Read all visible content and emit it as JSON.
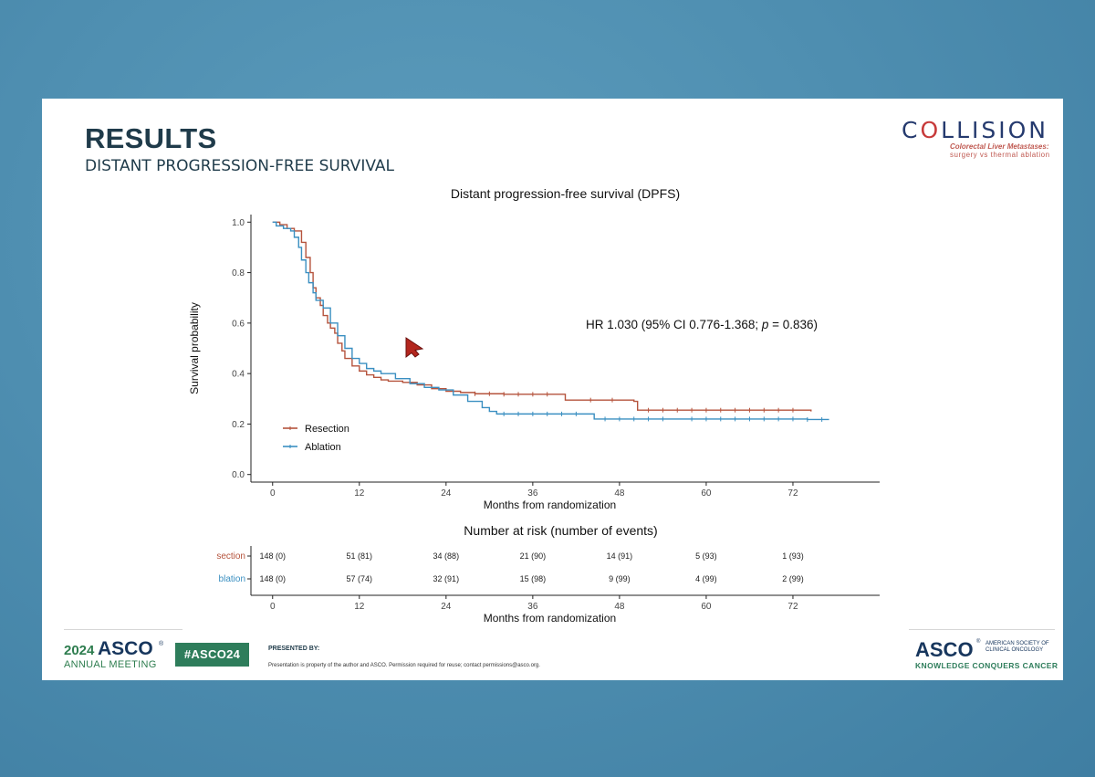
{
  "slide": {
    "title": "RESULTS",
    "subtitle": "DISTANT PROGRESSION-FREE SURVIVAL"
  },
  "logo": {
    "wordmark_pre": "C",
    "wordmark_hl": "O",
    "wordmark_post": "LLISION",
    "tagline_line1": "Colorectal Liver Metastases:",
    "tagline_line2": "surgery vs thermal ablation",
    "accent_color": "#c73a3a",
    "brand_color": "#253a6e"
  },
  "annotation": {
    "hr_prefix": "HR 1.030 (95% CI 0.776-1.368; ",
    "hr_p_symbol": "p",
    "hr_suffix": " = 0.836)"
  },
  "footer": {
    "meeting_year": "2024",
    "meeting_org": "ASCO",
    "meeting_reg": "®",
    "meeting_name": "ANNUAL MEETING",
    "hashtag": "#ASCO24",
    "presented_by": "PRESENTED BY:",
    "disclaimer": "Presentation is property of the author and ASCO. Permission required for reuse; contact permissions@asco.org.",
    "org_word": "ASCO",
    "org_reg": "®",
    "org_society": "AMERICAN SOCIETY OF CLINICAL ONCOLOGY",
    "org_tagline": "KNOWLEDGE CONQUERS CANCER",
    "green_color": "#2e7d5b"
  },
  "chart_data": [
    {
      "type": "line",
      "step": true,
      "title": "Distant progression-free survival (DPFS)",
      "xlabel": "Months from randomization",
      "ylabel": "Survival probability",
      "xlim": [
        -3,
        84
      ],
      "ylim": [
        -0.03,
        1.03
      ],
      "xticks": [
        0,
        12,
        24,
        36,
        48,
        60,
        72
      ],
      "yticks": [
        "0.0",
        "0.2",
        "0.4",
        "0.6",
        "0.8",
        "1.0"
      ],
      "grid": false,
      "legend_position": "bottom-left",
      "series": [
        {
          "name": "Resection",
          "color": "#b5533c",
          "points": [
            [
              0,
              1.0
            ],
            [
              1,
              0.99
            ],
            [
              2,
              0.975
            ],
            [
              3,
              0.965
            ],
            [
              4,
              0.92
            ],
            [
              4.6,
              0.86
            ],
            [
              5.2,
              0.8
            ],
            [
              5.6,
              0.74
            ],
            [
              6,
              0.7
            ],
            [
              6.6,
              0.67
            ],
            [
              7,
              0.63
            ],
            [
              7.6,
              0.6
            ],
            [
              8,
              0.58
            ],
            [
              8.6,
              0.56
            ],
            [
              9,
              0.52
            ],
            [
              9.6,
              0.49
            ],
            [
              10,
              0.46
            ],
            [
              11,
              0.43
            ],
            [
              12,
              0.41
            ],
            [
              13,
              0.395
            ],
            [
              14,
              0.385
            ],
            [
              15,
              0.375
            ],
            [
              16,
              0.37
            ],
            [
              18,
              0.365
            ],
            [
              20,
              0.355
            ],
            [
              22,
              0.34
            ],
            [
              24,
              0.33
            ],
            [
              26,
              0.325
            ],
            [
              28,
              0.32
            ],
            [
              32,
              0.318
            ],
            [
              36,
              0.318
            ],
            [
              40,
              0.318
            ],
            [
              40.5,
              0.295
            ],
            [
              45,
              0.295
            ],
            [
              50,
              0.29
            ],
            [
              50.5,
              0.255
            ],
            [
              56,
              0.255
            ],
            [
              60,
              0.255
            ],
            [
              66,
              0.255
            ],
            [
              72,
              0.255
            ],
            [
              74.5,
              0.25
            ]
          ],
          "censored_x": [
            28,
            30,
            32,
            34,
            36,
            38,
            44,
            47,
            52,
            54,
            56,
            58,
            60,
            62,
            64,
            66,
            68,
            70,
            72
          ]
        },
        {
          "name": "Ablation",
          "color": "#3a8fc1",
          "points": [
            [
              0,
              1.0
            ],
            [
              0.5,
              0.985
            ],
            [
              1.5,
              0.975
            ],
            [
              2.5,
              0.965
            ],
            [
              3,
              0.94
            ],
            [
              3.6,
              0.9
            ],
            [
              4,
              0.85
            ],
            [
              4.6,
              0.8
            ],
            [
              5,
              0.76
            ],
            [
              5.6,
              0.72
            ],
            [
              6,
              0.69
            ],
            [
              7,
              0.66
            ],
            [
              8,
              0.6
            ],
            [
              9,
              0.55
            ],
            [
              10,
              0.5
            ],
            [
              11,
              0.46
            ],
            [
              12,
              0.44
            ],
            [
              13,
              0.42
            ],
            [
              14,
              0.41
            ],
            [
              15,
              0.4
            ],
            [
              17,
              0.38
            ],
            [
              19,
              0.36
            ],
            [
              21,
              0.345
            ],
            [
              23,
              0.335
            ],
            [
              25,
              0.315
            ],
            [
              27,
              0.29
            ],
            [
              29,
              0.265
            ],
            [
              30,
              0.25
            ],
            [
              31,
              0.24
            ],
            [
              33,
              0.24
            ],
            [
              38,
              0.24
            ],
            [
              44,
              0.24
            ],
            [
              44.5,
              0.22
            ],
            [
              50,
              0.22
            ],
            [
              56,
              0.22
            ],
            [
              62,
              0.22
            ],
            [
              68,
              0.22
            ],
            [
              74,
              0.218
            ],
            [
              77,
              0.218
            ]
          ],
          "censored_x": [
            32,
            34,
            36,
            38,
            40,
            42,
            46,
            48,
            50,
            52,
            54,
            58,
            60,
            62,
            64,
            66,
            68,
            70,
            72,
            74,
            76
          ]
        }
      ]
    },
    {
      "type": "table",
      "title": "Number at risk (number of events)",
      "xlabel": "Months from randomization",
      "x": [
        0,
        12,
        24,
        36,
        48,
        60,
        72
      ],
      "xlim": [
        -3,
        84
      ],
      "rows": [
        {
          "label": "section",
          "color": "#b5533c",
          "values": [
            "148 (0)",
            "51 (81)",
            "34 (88)",
            "21 (90)",
            "14 (91)",
            "5 (93)",
            "1 (93)"
          ]
        },
        {
          "label": "blation",
          "color": "#3a8fc1",
          "values": [
            "148 (0)",
            "57 (74)",
            "32 (91)",
            "15 (98)",
            "9 (99)",
            "4 (99)",
            "2 (99)"
          ]
        }
      ]
    }
  ]
}
